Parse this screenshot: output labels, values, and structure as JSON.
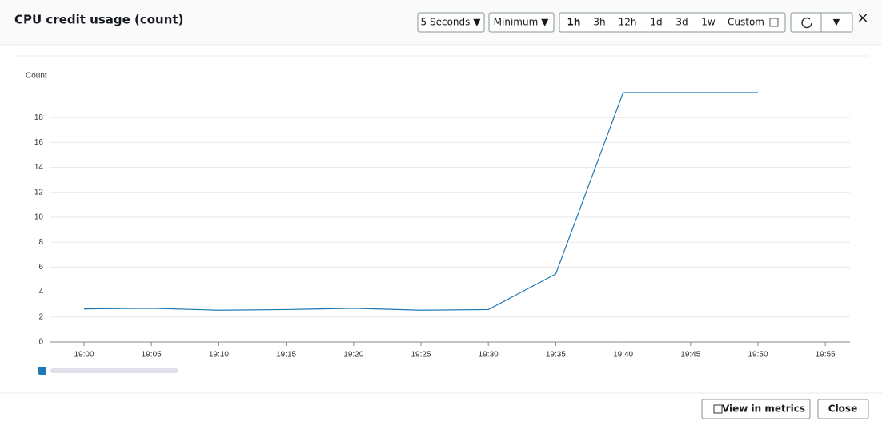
{
  "header": {
    "title": "CPU credit usage (count)"
  },
  "toolbar": {
    "period": "5 Seconds ▼",
    "statistic": "Minimum ▼",
    "ranges": [
      "1h",
      "3h",
      "12h",
      "1d",
      "3d",
      "1w",
      "Custom"
    ],
    "more": "▼",
    "close": "×"
  },
  "chart_data": {
    "type": "line",
    "y_label": "Count",
    "categories": [
      "19:00",
      "19:05",
      "19:10",
      "19:15",
      "19:20",
      "19:25",
      "19:30",
      "19:35",
      "19:40",
      "19:45",
      "19:50",
      "19:55"
    ],
    "series": [
      {
        "color": "#1f77b4",
        "values": [
          2.65,
          2.7,
          2.55,
          2.6,
          2.7,
          2.55,
          2.6,
          5.45,
          20,
          20,
          20,
          null
        ]
      }
    ],
    "ylim": [
      0,
      20
    ],
    "yticks": [
      0,
      2,
      4,
      6,
      8,
      10,
      12,
      14,
      16,
      18
    ],
    "grid": true
  },
  "footer": {
    "view": "View in metrics",
    "close": "Close"
  }
}
